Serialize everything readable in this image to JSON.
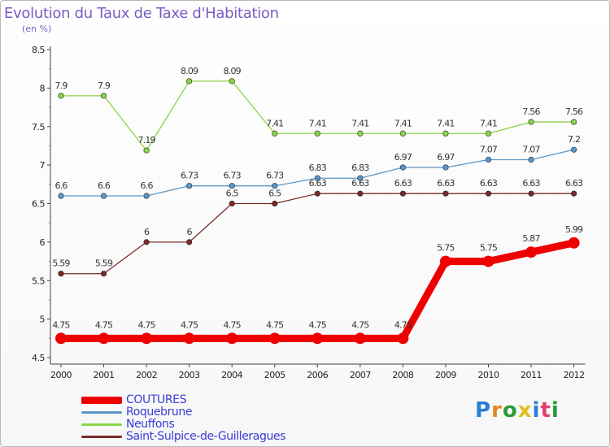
{
  "title": "Evolution du Taux de Taxe d'Habitation",
  "subtitle": "(en %)",
  "logo": {
    "text": "Proxiti",
    "letter_colors": [
      "#2a7fd4",
      "#e08a1e",
      "#2a9a3a",
      "#e0c020",
      "#2a7fd4",
      "#e04070",
      "#2a9a3a"
    ]
  },
  "chart_data": {
    "type": "line",
    "title": "Evolution du Taux de Taxe d'Habitation",
    "ylabel": "(en %)",
    "xlabel": "",
    "categories": [
      "2000",
      "2001",
      "2002",
      "2003",
      "2004",
      "2005",
      "2006",
      "2007",
      "2008",
      "2009",
      "2010",
      "2011",
      "2012"
    ],
    "ylim": [
      4.5,
      8.5
    ],
    "yticks": [
      "4.5",
      "5",
      "5.5",
      "6",
      "6.5",
      "7",
      "7.5",
      "8",
      "8.5"
    ],
    "grid": false,
    "legend_position": "bottom-left",
    "series": [
      {
        "name": "COUTURES",
        "color": "#ee0000",
        "emphasis": true,
        "values": [
          4.75,
          4.75,
          4.75,
          4.75,
          4.75,
          4.75,
          4.75,
          4.75,
          4.75,
          5.75,
          5.75,
          5.87,
          5.99
        ],
        "labels": [
          "4.75",
          "4.75",
          "4.75",
          "4.75",
          "4.75",
          "4.75",
          "4.75",
          "4.75",
          "4.75",
          "5.75",
          "5.75",
          "5.87",
          "5.99"
        ]
      },
      {
        "name": "Roquebrune",
        "color": "#5a96c8",
        "emphasis": false,
        "values": [
          6.6,
          6.6,
          6.6,
          6.73,
          6.73,
          6.73,
          6.83,
          6.83,
          6.97,
          6.97,
          7.07,
          7.07,
          7.2
        ],
        "labels": [
          "6.6",
          "6.6",
          "6.6",
          "6.73",
          "6.73",
          "6.73",
          "6.83",
          "6.83",
          "6.97",
          "6.97",
          "7.07",
          "7.07",
          "7.2"
        ]
      },
      {
        "name": "Neuffons",
        "color": "#8ad448",
        "emphasis": false,
        "values": [
          7.9,
          7.9,
          7.19,
          8.09,
          8.09,
          7.41,
          7.41,
          7.41,
          7.41,
          7.41,
          7.41,
          7.56,
          7.56
        ],
        "labels": [
          "7.9",
          "7.9",
          "7.19",
          "8.09",
          "8.09",
          "7.41",
          "7.41",
          "7.41",
          "7.41",
          "7.41",
          "7.41",
          "7.56",
          "7.56"
        ]
      },
      {
        "name": "Saint-Sulpice-de-Guilleragues",
        "color": "#7a2a2a",
        "emphasis": false,
        "values": [
          5.59,
          5.59,
          6.0,
          6.0,
          6.5,
          6.5,
          6.63,
          6.63,
          6.63,
          6.63,
          6.63,
          6.63,
          6.63
        ],
        "labels": [
          "5.59",
          "5.59",
          "6",
          "6",
          "6.5",
          "6.5",
          "6.63",
          "6.63",
          "6.63",
          "6.63",
          "6.63",
          "6.63",
          "6.63"
        ]
      }
    ]
  }
}
